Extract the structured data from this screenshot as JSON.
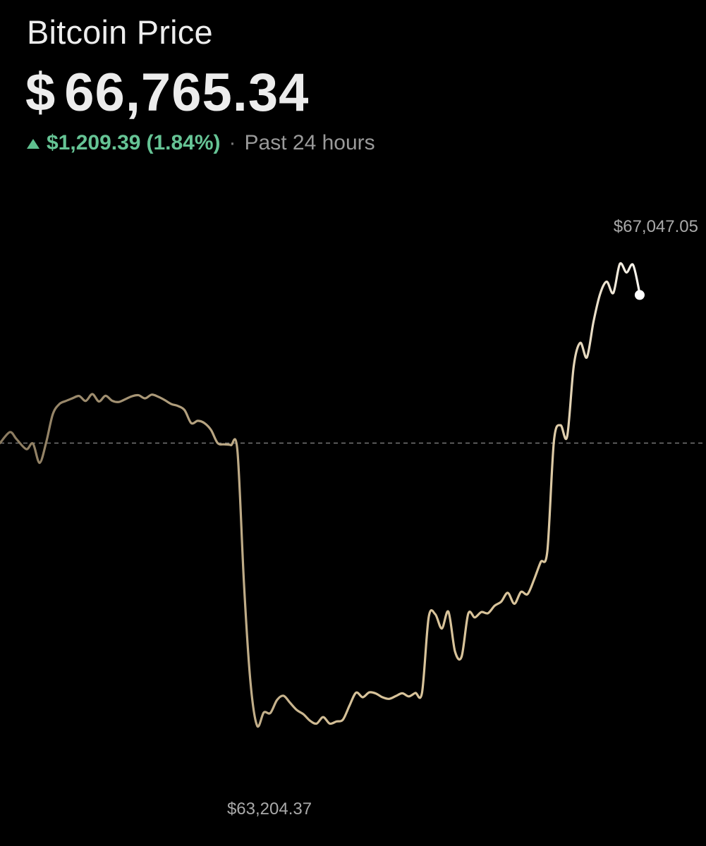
{
  "header": {
    "title": "Bitcoin Price",
    "currency_symbol": "$",
    "price": "66,765.34",
    "change_amount": "$1,209.39",
    "change_percent": "(1.84%)",
    "separator": "·",
    "period": "Past 24 hours"
  },
  "colors": {
    "background": "#000000",
    "positive": "#66c495",
    "line_start": "#8a7a5f",
    "line_mid": "#d8c39a",
    "line_end": "#ffffff",
    "baseline": "#777777"
  },
  "chart_data": {
    "type": "line",
    "x_label": "",
    "y_label": "",
    "x_range": [
      0,
      24
    ],
    "y_range": [
      63204.37,
      67047.05
    ],
    "baseline": 65555.95,
    "high_label": "$67,047.05",
    "low_label": "$63,204.37",
    "high": 67047.05,
    "low": 63204.37,
    "last": 66765.34,
    "grid": false,
    "legend": "none",
    "series": [
      {
        "values": [
          [
            0.0,
            65555.9
          ],
          [
            0.36,
            65645.0
          ],
          [
            0.6,
            65588.4
          ],
          [
            0.96,
            65507.2
          ],
          [
            1.2,
            65552.9
          ],
          [
            1.44,
            65395.8
          ],
          [
            1.68,
            65559.9
          ],
          [
            1.92,
            65788.9
          ],
          [
            2.16,
            65872.0
          ],
          [
            2.4,
            65897.1
          ],
          [
            2.64,
            65918.5
          ],
          [
            2.88,
            65937.0
          ],
          [
            3.12,
            65897.1
          ],
          [
            3.36,
            65952.4
          ],
          [
            3.6,
            65892.5
          ],
          [
            3.84,
            65938.5
          ],
          [
            4.08,
            65898.6
          ],
          [
            4.32,
            65888.6
          ],
          [
            4.56,
            65910.9
          ],
          [
            4.8,
            65935.0
          ],
          [
            5.04,
            65943.5
          ],
          [
            5.28,
            65918.0
          ],
          [
            5.52,
            65948.0
          ],
          [
            5.76,
            65930.9
          ],
          [
            6.0,
            65903.3
          ],
          [
            6.24,
            65871.5
          ],
          [
            6.48,
            65856.1
          ],
          [
            6.72,
            65821.9
          ],
          [
            6.96,
            65717.5
          ],
          [
            7.2,
            65736.4
          ],
          [
            7.44,
            65717.5
          ],
          [
            7.68,
            65662.2
          ],
          [
            7.92,
            65555.9
          ],
          [
            8.16,
            65545.9
          ],
          [
            8.4,
            65539.6
          ],
          [
            8.64,
            65497.1
          ],
          [
            8.88,
            64412.2
          ],
          [
            9.12,
            63612.3
          ],
          [
            9.36,
            63269.7
          ],
          [
            9.6,
            63377.5
          ],
          [
            9.84,
            63373.2
          ],
          [
            10.08,
            63478.2
          ],
          [
            10.32,
            63512.6
          ],
          [
            10.56,
            63455.0
          ],
          [
            10.8,
            63397.5
          ],
          [
            11.04,
            63363.9
          ],
          [
            11.28,
            63311.3
          ],
          [
            11.52,
            63287.6
          ],
          [
            11.76,
            63340.8
          ],
          [
            12.0,
            63287.4
          ],
          [
            12.24,
            63304.5
          ],
          [
            12.48,
            63319.6
          ],
          [
            12.72,
            63434.0
          ],
          [
            12.96,
            63538.0
          ],
          [
            13.2,
            63501.0
          ],
          [
            13.44,
            63540.2
          ],
          [
            13.68,
            63530.9
          ],
          [
            13.92,
            63500.9
          ],
          [
            14.16,
            63487.8
          ],
          [
            14.4,
            63509.8
          ],
          [
            14.64,
            63532.9
          ],
          [
            14.88,
            63507.6
          ],
          [
            15.12,
            63535.4
          ],
          [
            15.36,
            63538.7
          ],
          [
            15.6,
            64147.2
          ],
          [
            15.84,
            64172.3
          ],
          [
            16.08,
            64056.4
          ],
          [
            16.32,
            64192.2
          ],
          [
            16.56,
            63871.7
          ],
          [
            16.8,
            63829.6
          ],
          [
            17.04,
            64176.4
          ],
          [
            17.28,
            64146.4
          ],
          [
            17.52,
            64190.3
          ],
          [
            17.76,
            64180.2
          ],
          [
            18.0,
            64240.6
          ],
          [
            18.24,
            64273.6
          ],
          [
            18.48,
            64345.3
          ],
          [
            18.72,
            64257.0
          ],
          [
            18.96,
            64352.7
          ],
          [
            19.2,
            64334.7
          ],
          [
            19.44,
            64454.7
          ],
          [
            19.68,
            64594.1
          ],
          [
            19.92,
            64685.3
          ],
          [
            20.16,
            65573.0
          ],
          [
            20.4,
            65700.7
          ],
          [
            20.64,
            65609.0
          ],
          [
            20.88,
            66180.0
          ],
          [
            21.12,
            66367.3
          ],
          [
            21.36,
            66249.7
          ],
          [
            21.6,
            66537.7
          ],
          [
            21.84,
            66762.5
          ],
          [
            22.08,
            66861.9
          ],
          [
            22.32,
            66770.1
          ],
          [
            22.56,
            67006.2
          ],
          [
            22.8,
            66935.9
          ],
          [
            23.04,
            66997.0
          ],
          [
            23.28,
            66765.3
          ]
        ]
      }
    ]
  }
}
